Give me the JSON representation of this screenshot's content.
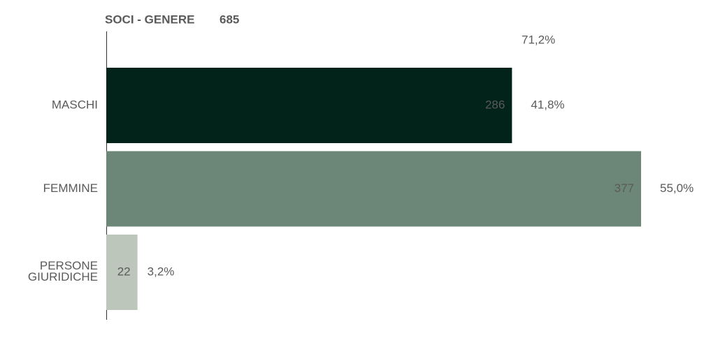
{
  "chart_data": {
    "type": "bar",
    "orientation": "horizontal",
    "title": "SOCI - GENERE",
    "total": 685,
    "annotation": "71,2%",
    "categories": [
      "MASCHI",
      "FEMMINE",
      "PERSONE\nGIURIDICHE"
    ],
    "values": [
      286,
      377,
      22
    ],
    "colors": [
      "#02231a",
      "#6c8777",
      "#bcc6bb"
    ],
    "value_label_colors": [
      "#ffffff",
      "#ffffff",
      "#5a5a5a"
    ],
    "percent_labels": [
      "41,8%",
      "55,0%",
      "3,2%"
    ],
    "percent_label_colors": [
      "#02231a",
      "#6c8777",
      "#5a5a5a"
    ]
  }
}
